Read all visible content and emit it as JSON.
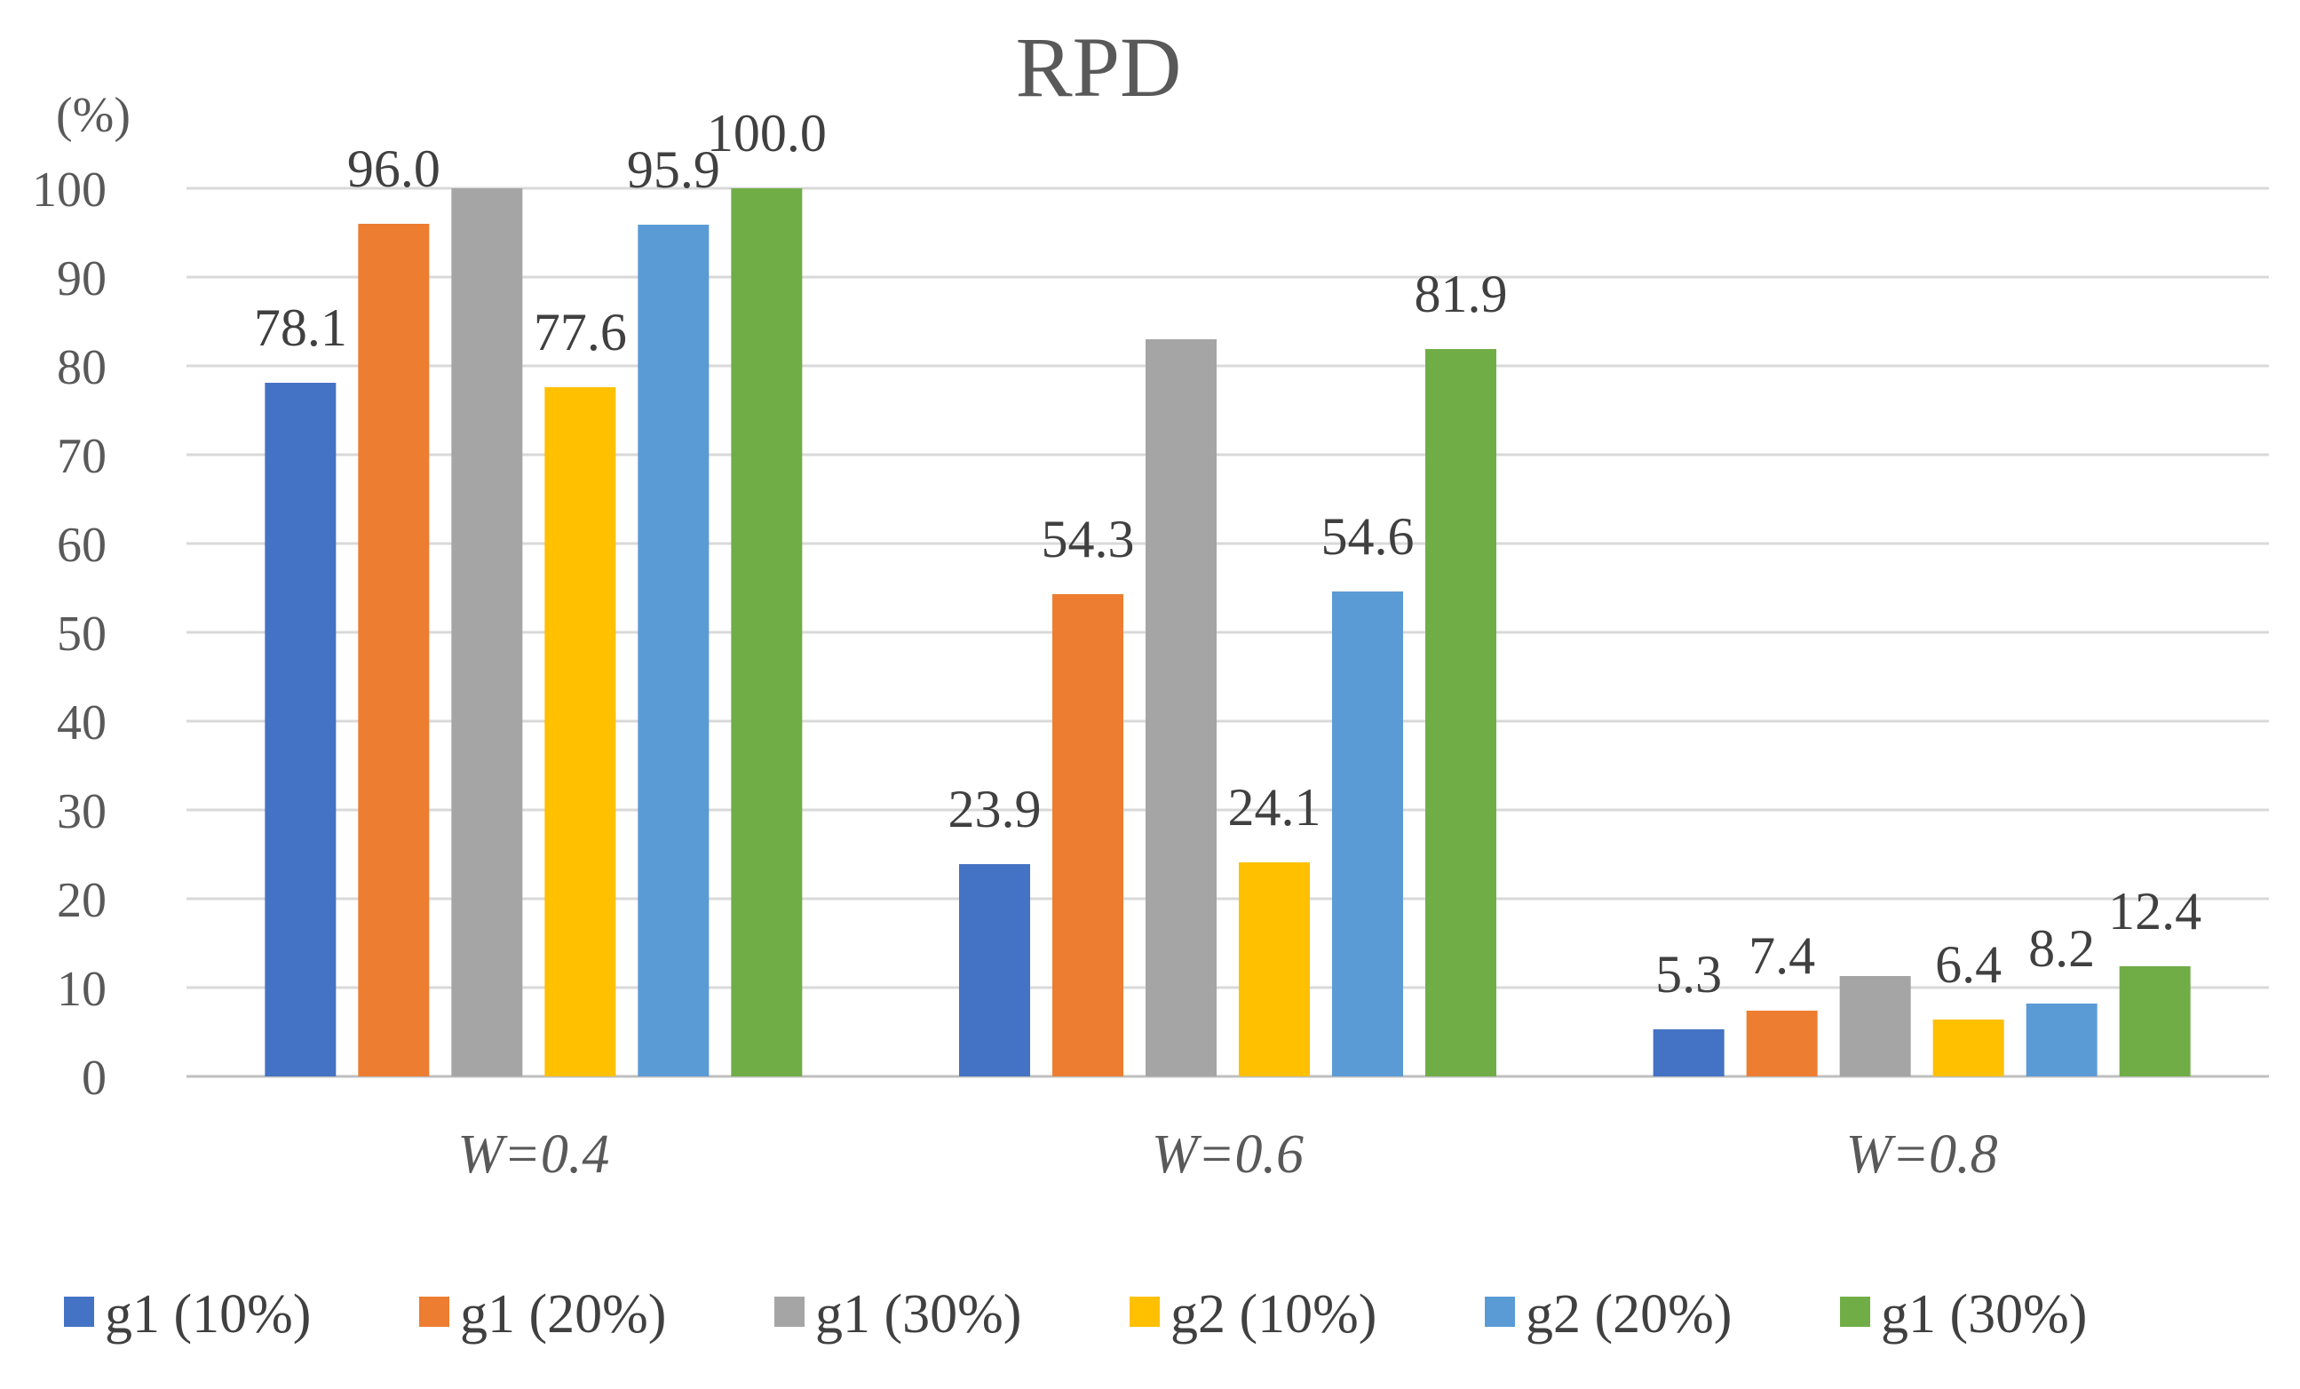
{
  "chart_data": {
    "type": "bar",
    "title": "RPD",
    "ylabel": "(%)",
    "xlabel": "",
    "ylim": [
      0,
      100
    ],
    "yticks": [
      0,
      10,
      20,
      30,
      40,
      50,
      60,
      70,
      80,
      90,
      100
    ],
    "grid": true,
    "legend_position": "bottom",
    "categories": [
      "W=0.4",
      "W=0.6",
      "W=0.8"
    ],
    "series": [
      {
        "name": "g1 (10%)",
        "color": "#4472C4",
        "values": [
          78.1,
          23.9,
          5.3
        ],
        "labels": [
          "78.1",
          "23.9",
          "5.3"
        ]
      },
      {
        "name": "g1 (20%)",
        "color": "#ED7D31",
        "values": [
          96.0,
          54.3,
          7.4
        ],
        "labels": [
          "96.0",
          "54.3",
          "7.4"
        ]
      },
      {
        "name": "g1 (30%)",
        "color": "#A5A5A5",
        "values": [
          100.0,
          83.0,
          11.3
        ],
        "labels": [
          "",
          "",
          ""
        ]
      },
      {
        "name": "g2 (10%)",
        "color": "#FFC000",
        "values": [
          77.6,
          24.1,
          6.4
        ],
        "labels": [
          "77.6",
          "24.1",
          "6.4"
        ]
      },
      {
        "name": "g2 (20%)",
        "color": "#5B9BD5",
        "values": [
          95.9,
          54.6,
          8.2
        ],
        "labels": [
          "95.9",
          "54.6",
          "8.2"
        ]
      },
      {
        "name": "g1 (30%)",
        "color": "#70AD47",
        "values": [
          100.0,
          81.9,
          12.4
        ],
        "labels": [
          "100.0",
          "81.9",
          "12.4"
        ]
      }
    ]
  }
}
